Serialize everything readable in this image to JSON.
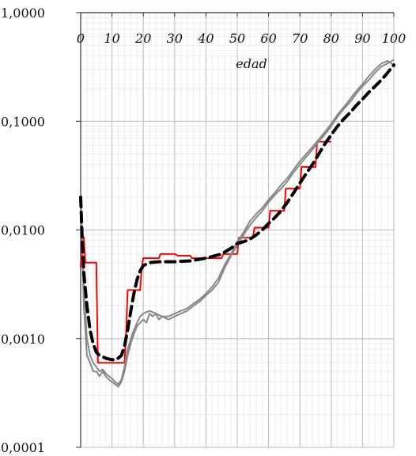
{
  "chart_data": {
    "type": "line",
    "title": "",
    "xlabel": "edad",
    "ylabel": "",
    "x_axis_position": "top",
    "xlim": [
      0,
      100
    ],
    "ylim": [
      0.0001,
      1
    ],
    "y_scale": "log",
    "grid": true,
    "legend": "none",
    "x_ticks": [
      "0",
      "10",
      "20",
      "30",
      "40",
      "50",
      "60",
      "70",
      "80",
      "90",
      "100"
    ],
    "y_ticks": [
      "1,0000",
      "0,1000",
      "0,0100",
      "0,0010",
      "0,0001"
    ],
    "series": [
      {
        "color": "#ff0000",
        "style": "solid-step",
        "points": [
          [
            0,
            0.0045
          ],
          [
            0.5,
            0.009
          ],
          [
            1,
            0.0085
          ],
          [
            1.5,
            0.005
          ],
          [
            3,
            0.005
          ],
          [
            5,
            0.005
          ],
          [
            5.5,
            0.0006
          ],
          [
            10,
            0.0006
          ],
          [
            14,
            0.0006
          ],
          [
            14.5,
            0.0011
          ],
          [
            15,
            0.0028
          ],
          [
            17,
            0.0028
          ],
          [
            19,
            0.0028
          ],
          [
            19.5,
            0.0045
          ],
          [
            20,
            0.0055
          ],
          [
            25,
            0.0055
          ],
          [
            25.5,
            0.006
          ],
          [
            30,
            0.006
          ],
          [
            31,
            0.0058
          ],
          [
            35,
            0.0058
          ],
          [
            35.5,
            0.0055
          ],
          [
            45,
            0.0055
          ],
          [
            45.5,
            0.006
          ],
          [
            50,
            0.006
          ],
          [
            50.5,
            0.0085
          ],
          [
            55,
            0.0085
          ],
          [
            55.5,
            0.0105
          ],
          [
            60,
            0.0105
          ],
          [
            60.5,
            0.015
          ],
          [
            65,
            0.015
          ],
          [
            65.5,
            0.024
          ],
          [
            70,
            0.024
          ],
          [
            70.5,
            0.038
          ],
          [
            75,
            0.038
          ],
          [
            75.5,
            0.065
          ],
          [
            80,
            0.065
          ]
        ]
      },
      {
        "color": "#888888",
        "style": "solid-thin",
        "points": [
          [
            0,
            0.02
          ],
          [
            0.5,
            0.006
          ],
          [
            1,
            0.002
          ],
          [
            2,
            0.0007
          ],
          [
            3,
            0.0006
          ],
          [
            4,
            0.0005
          ],
          [
            5,
            0.0005
          ],
          [
            6,
            0.00045
          ],
          [
            7,
            0.0005
          ],
          [
            8,
            0.00045
          ],
          [
            9,
            0.00042
          ],
          [
            10,
            0.0004
          ],
          [
            11,
            0.00038
          ],
          [
            12,
            0.00036
          ],
          [
            13,
            0.0004
          ],
          [
            14,
            0.0005
          ],
          [
            15,
            0.0007
          ],
          [
            16,
            0.0009
          ],
          [
            17,
            0.0011
          ],
          [
            18,
            0.0013
          ],
          [
            19,
            0.0014
          ],
          [
            20,
            0.0015
          ],
          [
            21,
            0.0014
          ],
          [
            22,
            0.0017
          ],
          [
            23,
            0.0016
          ],
          [
            24,
            0.0017
          ],
          [
            25,
            0.0015
          ],
          [
            26,
            0.0016
          ],
          [
            28,
            0.0015
          ],
          [
            30,
            0.0016
          ],
          [
            32,
            0.0017
          ],
          [
            34,
            0.0018
          ],
          [
            36,
            0.002
          ],
          [
            38,
            0.0022
          ],
          [
            40,
            0.0025
          ],
          [
            42,
            0.0028
          ],
          [
            44,
            0.0033
          ],
          [
            46,
            0.0045
          ],
          [
            48,
            0.0058
          ],
          [
            50,
            0.0072
          ],
          [
            52,
            0.009
          ],
          [
            54,
            0.011
          ],
          [
            56,
            0.013
          ],
          [
            58,
            0.015
          ],
          [
            60,
            0.018
          ],
          [
            62,
            0.021
          ],
          [
            64,
            0.024
          ],
          [
            66,
            0.028
          ],
          [
            68,
            0.034
          ],
          [
            70,
            0.04
          ],
          [
            72,
            0.047
          ],
          [
            74,
            0.055
          ],
          [
            76,
            0.065
          ],
          [
            78,
            0.076
          ],
          [
            80,
            0.09
          ],
          [
            82,
            0.11
          ],
          [
            84,
            0.13
          ],
          [
            86,
            0.15
          ],
          [
            88,
            0.18
          ],
          [
            90,
            0.21
          ],
          [
            92,
            0.24
          ],
          [
            94,
            0.28
          ],
          [
            96,
            0.32
          ],
          [
            98,
            0.34
          ],
          [
            100,
            0.37
          ]
        ]
      },
      {
        "color": "#888888",
        "style": "solid-thin",
        "points": [
          [
            0,
            0.024
          ],
          [
            0.5,
            0.008
          ],
          [
            1,
            0.003
          ],
          [
            2,
            0.001
          ],
          [
            3,
            0.0007
          ],
          [
            4,
            0.0006
          ],
          [
            5,
            0.00055
          ],
          [
            6,
            0.0005
          ],
          [
            7,
            0.00052
          ],
          [
            8,
            0.00048
          ],
          [
            9,
            0.00045
          ],
          [
            10,
            0.00043
          ],
          [
            11,
            0.0004
          ],
          [
            12,
            0.00038
          ],
          [
            13,
            0.00042
          ],
          [
            14,
            0.00055
          ],
          [
            15,
            0.0008
          ],
          [
            16,
            0.001
          ],
          [
            17,
            0.0012
          ],
          [
            18,
            0.0014
          ],
          [
            19,
            0.0016
          ],
          [
            20,
            0.0017
          ],
          [
            22,
            0.0018
          ],
          [
            24,
            0.0017
          ],
          [
            26,
            0.0016
          ],
          [
            28,
            0.0016
          ],
          [
            30,
            0.0017
          ],
          [
            32,
            0.0018
          ],
          [
            34,
            0.0019
          ],
          [
            36,
            0.0021
          ],
          [
            38,
            0.0023
          ],
          [
            40,
            0.0026
          ],
          [
            42,
            0.003
          ],
          [
            44,
            0.0036
          ],
          [
            46,
            0.0048
          ],
          [
            48,
            0.006
          ],
          [
            50,
            0.0078
          ],
          [
            52,
            0.0095
          ],
          [
            54,
            0.012
          ],
          [
            56,
            0.014
          ],
          [
            58,
            0.016
          ],
          [
            60,
            0.019
          ],
          [
            62,
            0.022
          ],
          [
            64,
            0.026
          ],
          [
            66,
            0.03
          ],
          [
            68,
            0.036
          ],
          [
            70,
            0.043
          ],
          [
            72,
            0.05
          ],
          [
            74,
            0.058
          ],
          [
            76,
            0.068
          ],
          [
            78,
            0.08
          ],
          [
            80,
            0.095
          ],
          [
            82,
            0.115
          ],
          [
            84,
            0.135
          ],
          [
            86,
            0.16
          ],
          [
            88,
            0.19
          ],
          [
            90,
            0.22
          ],
          [
            92,
            0.26
          ],
          [
            94,
            0.3
          ],
          [
            96,
            0.34
          ],
          [
            98,
            0.36
          ],
          [
            100,
            0.33
          ]
        ]
      },
      {
        "color": "#000000",
        "style": "dashed-thick",
        "points": [
          [
            0,
            0.02
          ],
          [
            0.5,
            0.008
          ],
          [
            1,
            0.004
          ],
          [
            2,
            0.002
          ],
          [
            3,
            0.0012
          ],
          [
            4,
            0.0009
          ],
          [
            5,
            0.00075
          ],
          [
            6,
            0.0007
          ],
          [
            7,
            0.00068
          ],
          [
            8,
            0.00066
          ],
          [
            9,
            0.00065
          ],
          [
            10,
            0.00064
          ],
          [
            11,
            0.00064
          ],
          [
            12,
            0.00066
          ],
          [
            13,
            0.0007
          ],
          [
            14,
            0.00085
          ],
          [
            15,
            0.0012
          ],
          [
            16,
            0.0018
          ],
          [
            17,
            0.0026
          ],
          [
            18,
            0.0035
          ],
          [
            19,
            0.0042
          ],
          [
            20,
            0.0047
          ],
          [
            22,
            0.005
          ],
          [
            25,
            0.0051
          ],
          [
            30,
            0.0051
          ],
          [
            35,
            0.0052
          ],
          [
            40,
            0.0055
          ],
          [
            45,
            0.006
          ],
          [
            48,
            0.0068
          ],
          [
            50,
            0.0075
          ],
          [
            52,
            0.0078
          ],
          [
            54,
            0.0082
          ],
          [
            56,
            0.009
          ],
          [
            58,
            0.01
          ],
          [
            60,
            0.0115
          ],
          [
            62,
            0.013
          ],
          [
            64,
            0.015
          ],
          [
            66,
            0.018
          ],
          [
            68,
            0.022
          ],
          [
            70,
            0.027
          ],
          [
            72,
            0.033
          ],
          [
            74,
            0.04
          ],
          [
            76,
            0.05
          ],
          [
            78,
            0.062
          ],
          [
            80,
            0.075
          ],
          [
            82,
            0.09
          ],
          [
            84,
            0.105
          ],
          [
            86,
            0.12
          ],
          [
            88,
            0.14
          ],
          [
            90,
            0.16
          ],
          [
            92,
            0.185
          ],
          [
            94,
            0.21
          ],
          [
            96,
            0.24
          ],
          [
            98,
            0.28
          ],
          [
            100,
            0.33
          ]
        ]
      }
    ]
  }
}
